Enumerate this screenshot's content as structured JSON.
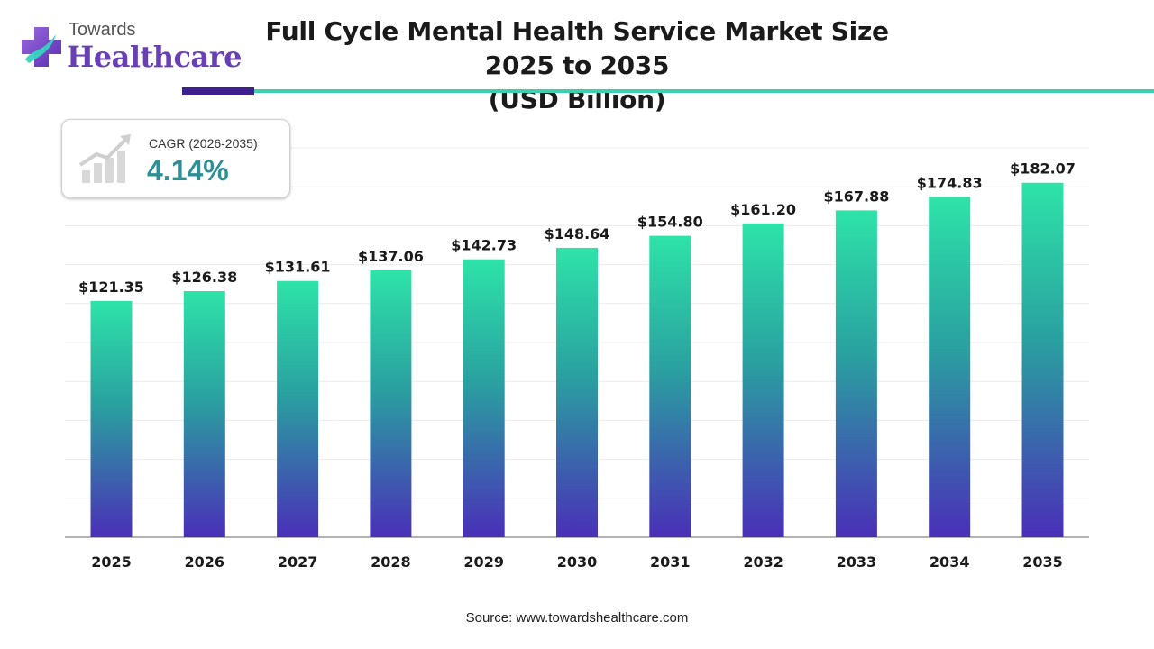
{
  "brand": {
    "line1": "Towards",
    "line2": "Healthcare"
  },
  "header": {
    "title_line1": "Full Cycle Mental Health Service Market Size 2025 to 2035",
    "title_line2": "(USD Billion)"
  },
  "cagr": {
    "label": "CAGR (2026-2035)",
    "value": "4.14%"
  },
  "colors": {
    "bar_top": "#2ee3a8",
    "bar_mid": "#2a9fa0",
    "bar_bottom": "#4a2fb8",
    "accent_purple": "#3d1f8f",
    "accent_teal": "#3ecfae"
  },
  "chart_data": {
    "type": "bar",
    "categories": [
      "2025",
      "2026",
      "2027",
      "2028",
      "2029",
      "2030",
      "2031",
      "2032",
      "2033",
      "2034",
      "2035"
    ],
    "values": [
      121.35,
      126.38,
      131.61,
      137.06,
      142.73,
      148.64,
      154.8,
      161.2,
      167.88,
      174.83,
      182.07
    ],
    "value_labels": [
      "$121.35",
      "$126.38",
      "$131.61",
      "$137.06",
      "$142.73",
      "$148.64",
      "$154.80",
      "$161.20",
      "$167.88",
      "$174.83",
      "$182.07"
    ],
    "title": "Full Cycle Mental Health Service Market Size 2025 to 2035 (USD Billion)",
    "xlabel": "",
    "ylabel": "",
    "ylim": [
      0,
      200
    ],
    "grid": true,
    "legend": "none"
  },
  "footer": {
    "source": "Source: www.towardshealthcare.com"
  }
}
